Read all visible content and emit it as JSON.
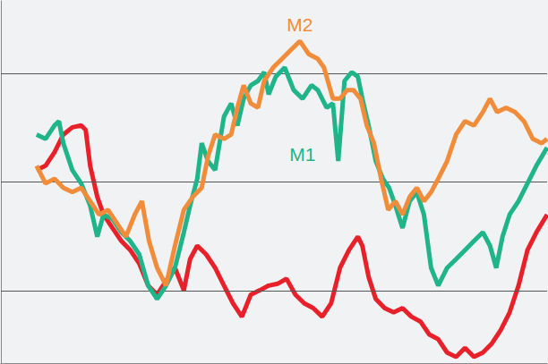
{
  "chart_data": {
    "type": "line",
    "xlim": [
      0,
      612
    ],
    "ylim": [
      0,
      100
    ],
    "yticks": [
      20,
      50,
      80
    ],
    "grid": true,
    "tick_labels": false,
    "series": [
      {
        "name": "M2",
        "color": "#f08c3a",
        "x": [
          40,
          50,
          60,
          70,
          80,
          90,
          100,
          110,
          120,
          130,
          140,
          150,
          158,
          166,
          175,
          185,
          195,
          205,
          215,
          225,
          232,
          240,
          250,
          258,
          265,
          272,
          280,
          288,
          295,
          305,
          315,
          325,
          335,
          345,
          355,
          362,
          372,
          380,
          388,
          395,
          403,
          410,
          418,
          426,
          434,
          442,
          450,
          458,
          466,
          474,
          482,
          490,
          500,
          510,
          520,
          530,
          540,
          548,
          556,
          566,
          576,
          586,
          596,
          606,
          612
        ],
        "values": [
          54.5,
          49.6,
          50.9,
          48.4,
          47.2,
          48.4,
          44.7,
          41.0,
          42.3,
          38.6,
          34.9,
          41.0,
          44.7,
          33.7,
          26.3,
          21.4,
          32.4,
          42.3,
          45.9,
          48.4,
          57.0,
          63.1,
          61.9,
          63.1,
          70.5,
          76.7,
          71.7,
          70.5,
          77.9,
          81.6,
          84.0,
          86.5,
          88.9,
          85.3,
          84.0,
          81.6,
          73.0,
          73.0,
          75.4,
          75.4,
          73.0,
          65.6,
          60.7,
          50.9,
          42.3,
          44.7,
          41.0,
          45.9,
          48.4,
          44.7,
          47.2,
          50.9,
          55.8,
          63.1,
          66.8,
          65.6,
          69.3,
          73.0,
          69.3,
          70.5,
          69.3,
          66.8,
          61.9,
          60.7,
          61.9
        ]
      },
      {
        "name": "M1",
        "color": "#1fb489",
        "x": [
          40,
          50,
          60,
          65,
          70,
          80,
          90,
          100,
          108,
          115,
          125,
          135,
          145,
          155,
          165,
          175,
          185,
          195,
          205,
          212,
          220,
          225,
          232,
          240,
          250,
          258,
          265,
          272,
          280,
          288,
          295,
          300,
          308,
          318,
          328,
          338,
          348,
          355,
          365,
          372,
          378,
          385,
          393,
          400,
          405,
          412,
          420,
          428,
          435,
          442,
          450,
          458,
          466,
          474,
          482,
          490,
          500,
          510,
          520,
          530,
          540,
          548,
          555,
          562,
          570,
          580,
          590,
          600,
          612
        ],
        "values": [
          63.1,
          61.9,
          65.6,
          66.8,
          60.7,
          53.3,
          49.6,
          43.5,
          34.9,
          41.0,
          39.8,
          36.1,
          33.7,
          30.0,
          21.4,
          17.7,
          21.4,
          26.3,
          36.1,
          43.5,
          50.9,
          60.7,
          55.8,
          53.3,
          68.1,
          71.7,
          65.6,
          73.0,
          76.7,
          77.9,
          80.3,
          74.2,
          79.1,
          81.6,
          75.4,
          73.0,
          76.7,
          75.4,
          70.5,
          71.7,
          55.8,
          77.9,
          80.3,
          79.1,
          73.0,
          65.6,
          55.8,
          50.9,
          48.4,
          43.5,
          37.3,
          44.7,
          47.2,
          41.0,
          26.3,
          21.4,
          26.3,
          28.7,
          31.2,
          33.7,
          36.1,
          32.4,
          26.3,
          34.9,
          41.0,
          44.7,
          49.6,
          54.5,
          59.5
        ]
      },
      {
        "name": null,
        "color": "#e8202a",
        "x": [
          40,
          50,
          60,
          70,
          80,
          90,
          95,
          100,
          108,
          115,
          125,
          135,
          145,
          155,
          165,
          175,
          185,
          195,
          205,
          212,
          220,
          230,
          240,
          250,
          260,
          270,
          280,
          290,
          300,
          310,
          320,
          330,
          340,
          350,
          360,
          370,
          380,
          390,
          400,
          405,
          412,
          420,
          430,
          440,
          450,
          460,
          470,
          480,
          490,
          500,
          510,
          520,
          530,
          540,
          550,
          560,
          570,
          580,
          590,
          600,
          612
        ],
        "values": [
          53.3,
          54.5,
          58.2,
          63.1,
          65.1,
          65.6,
          64.4,
          54.5,
          45.9,
          41.0,
          37.3,
          33.7,
          31.2,
          27.5,
          21.4,
          18.9,
          22.6,
          26.3,
          20.1,
          28.7,
          32.4,
          30.0,
          26.3,
          21.4,
          16.5,
          12.8,
          18.9,
          20.1,
          21.4,
          21.9,
          23.3,
          18.9,
          16.5,
          15.2,
          12.8,
          16.5,
          26.3,
          31.2,
          34.9,
          32.4,
          23.8,
          17.7,
          15.2,
          14.0,
          15.2,
          12.8,
          11.5,
          7.9,
          6.6,
          2.9,
          1.7,
          4.2,
          1.7,
          2.9,
          5.4,
          9.1,
          14.0,
          21.4,
          31.2,
          36.1,
          41.0
        ]
      }
    ]
  }
}
